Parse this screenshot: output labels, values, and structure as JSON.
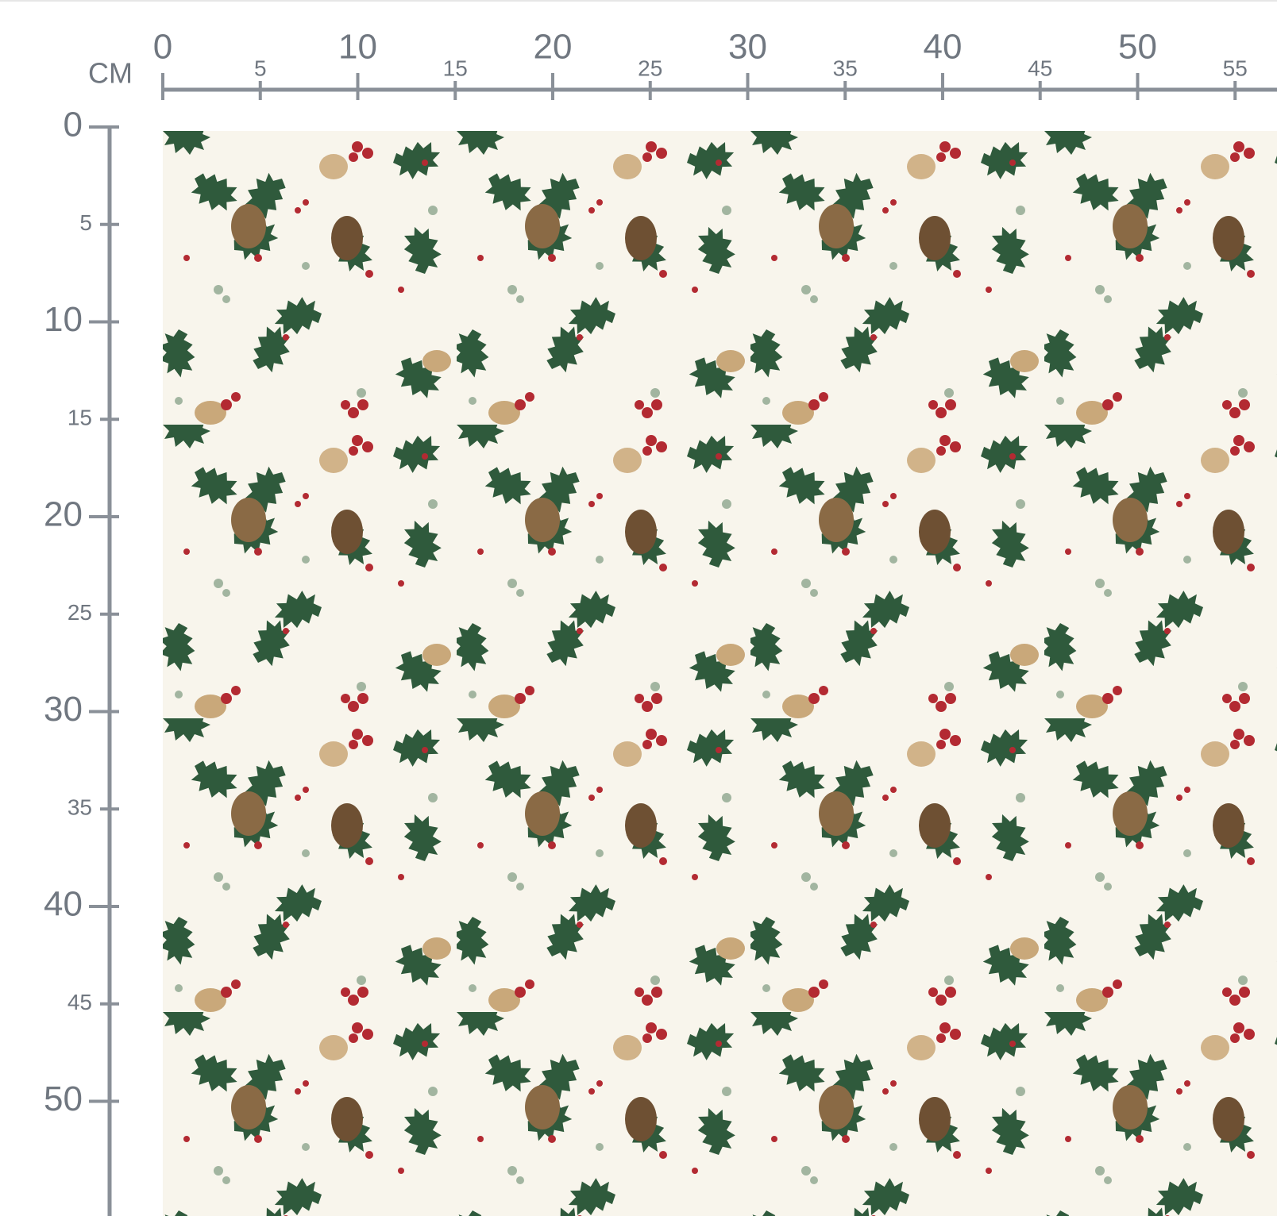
{
  "ruler": {
    "unit": "CM",
    "top_ticks": [
      0,
      5,
      10,
      15,
      20,
      25,
      30,
      35,
      40,
      45,
      50,
      55
    ],
    "left_ticks": [
      0,
      5,
      10,
      15,
      20,
      25,
      30,
      35,
      40,
      45,
      50
    ]
  }
}
